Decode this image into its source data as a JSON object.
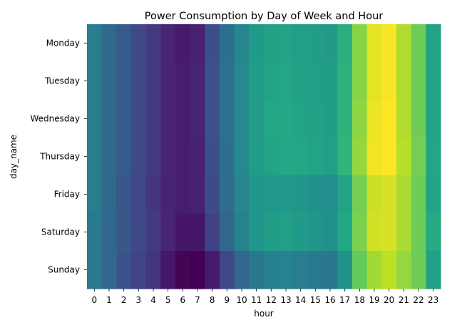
{
  "chart_data": {
    "type": "heatmap",
    "title": "Power Consumption by Day of Week and Hour",
    "xlabel": "hour",
    "ylabel": "day_name",
    "x": [
      "0",
      "1",
      "2",
      "3",
      "4",
      "5",
      "6",
      "7",
      "8",
      "9",
      "10",
      "11",
      "12",
      "13",
      "14",
      "15",
      "16",
      "17",
      "18",
      "19",
      "20",
      "21",
      "22",
      "23"
    ],
    "y": [
      "Monday",
      "Tuesday",
      "Wednesday",
      "Thursday",
      "Friday",
      "Saturday",
      "Sunday"
    ],
    "colormap": "viridis",
    "colorbar": false,
    "values": [
      [
        0.42,
        0.34,
        0.28,
        0.22,
        0.17,
        0.1,
        0.07,
        0.09,
        0.24,
        0.36,
        0.46,
        0.54,
        0.57,
        0.58,
        0.56,
        0.55,
        0.54,
        0.63,
        0.82,
        0.96,
        0.99,
        0.88,
        0.78,
        0.58
      ],
      [
        0.42,
        0.34,
        0.28,
        0.22,
        0.17,
        0.1,
        0.08,
        0.1,
        0.25,
        0.37,
        0.47,
        0.55,
        0.58,
        0.59,
        0.57,
        0.56,
        0.55,
        0.64,
        0.82,
        0.96,
        0.99,
        0.88,
        0.78,
        0.58
      ],
      [
        0.42,
        0.34,
        0.28,
        0.22,
        0.17,
        0.1,
        0.08,
        0.1,
        0.25,
        0.37,
        0.47,
        0.55,
        0.59,
        0.6,
        0.58,
        0.57,
        0.55,
        0.64,
        0.83,
        0.97,
        1.0,
        0.88,
        0.78,
        0.58
      ],
      [
        0.42,
        0.34,
        0.28,
        0.22,
        0.17,
        0.1,
        0.08,
        0.09,
        0.24,
        0.36,
        0.47,
        0.55,
        0.58,
        0.6,
        0.59,
        0.58,
        0.56,
        0.65,
        0.84,
        0.98,
        1.0,
        0.89,
        0.79,
        0.59
      ],
      [
        0.42,
        0.34,
        0.27,
        0.21,
        0.16,
        0.1,
        0.08,
        0.09,
        0.23,
        0.35,
        0.45,
        0.52,
        0.53,
        0.53,
        0.52,
        0.5,
        0.49,
        0.58,
        0.79,
        0.92,
        0.94,
        0.87,
        0.78,
        0.58
      ],
      [
        0.41,
        0.33,
        0.27,
        0.22,
        0.17,
        0.1,
        0.06,
        0.06,
        0.19,
        0.33,
        0.44,
        0.52,
        0.55,
        0.56,
        0.54,
        0.52,
        0.5,
        0.6,
        0.8,
        0.93,
        0.94,
        0.87,
        0.78,
        0.61
      ],
      [
        0.41,
        0.33,
        0.26,
        0.2,
        0.15,
        0.06,
        0.01,
        0.0,
        0.07,
        0.21,
        0.33,
        0.4,
        0.43,
        0.44,
        0.42,
        0.41,
        0.4,
        0.51,
        0.76,
        0.86,
        0.9,
        0.84,
        0.78,
        0.56
      ]
    ]
  }
}
